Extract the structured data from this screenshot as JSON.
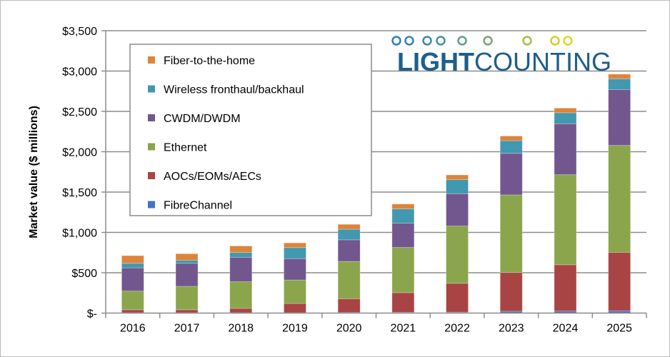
{
  "logo": {
    "text": "LIGHTCOUNTING",
    "bold_part": "LIGHT",
    "light_part": "COUNTING"
  },
  "chart_data": {
    "type": "bar",
    "stacked": true,
    "title": "",
    "xlabel": "",
    "ylabel": "Market value ($ millions)",
    "ylim": [
      0,
      3500
    ],
    "yticks": [
      0,
      500,
      1000,
      1500,
      2000,
      2500,
      3000,
      3500
    ],
    "ytick_labels": [
      "$-",
      "$500",
      "$1,000",
      "$1,500",
      "$2,000",
      "$2,500",
      "$3,000",
      "$3,500"
    ],
    "grid": true,
    "legend_position": "top-left",
    "categories": [
      "2016",
      "2017",
      "2018",
      "2019",
      "2020",
      "2021",
      "2022",
      "2023",
      "2024",
      "2025"
    ],
    "series": [
      {
        "name": "FibreChannel",
        "color": "#4472C4",
        "values": [
          5,
          5,
          5,
          5,
          8,
          10,
          12,
          23,
          25,
          28
        ]
      },
      {
        "name": "AOCs/EOMs/AECs",
        "color": "#A84444",
        "values": [
          36,
          36,
          53,
          114,
          169,
          243,
          357,
          480,
          574,
          725
        ]
      },
      {
        "name": "Ethernet",
        "color": "#8AA54B",
        "values": [
          232,
          291,
          332,
          291,
          463,
          561,
          710,
          962,
          1116,
          1325
        ]
      },
      {
        "name": "CWDM/DWDM",
        "color": "#71578E",
        "values": [
          288,
          285,
          302,
          265,
          268,
          302,
          401,
          515,
          631,
          692
        ]
      },
      {
        "name": "Wireless fronthaul/backhaul",
        "color": "#4198AF",
        "values": [
          56,
          38,
          59,
          137,
          131,
          175,
          174,
          157,
          137,
          134
        ]
      },
      {
        "name": "Fiber-to-the-home",
        "color": "#DE843A",
        "values": [
          95,
          81,
          81,
          58,
          61,
          61,
          58,
          58,
          58,
          58
        ]
      }
    ]
  }
}
